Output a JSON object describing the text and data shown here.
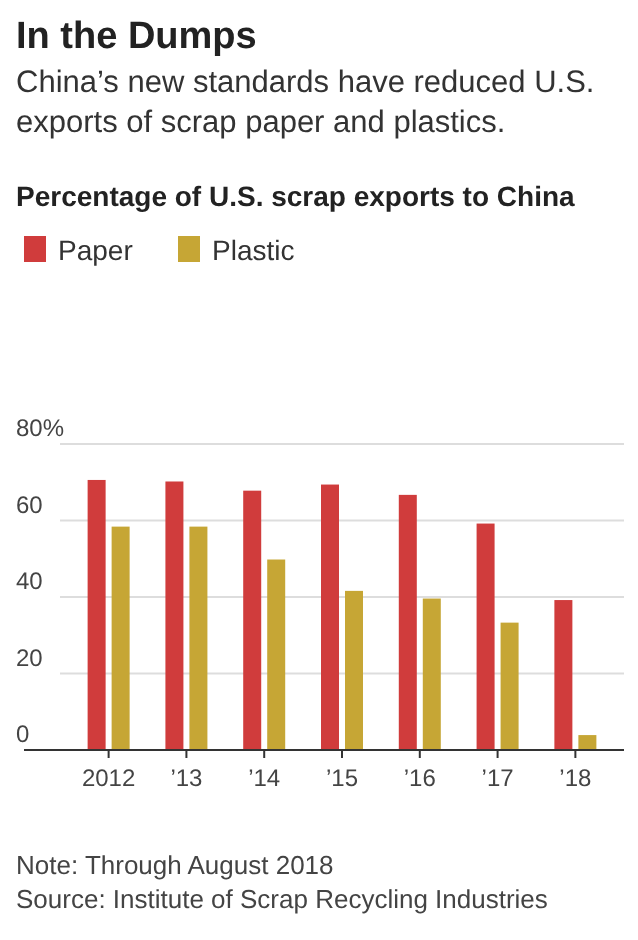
{
  "chart_data": {
    "type": "bar",
    "title": "In the Dumps",
    "subtitle": "China’s new standards have reduced U.S. exports of scrap paper and plastics.",
    "categories": [
      "2012",
      "’13",
      "’14",
      "’15",
      "’16",
      "’17",
      "’18"
    ],
    "series": [
      {
        "name": "Paper",
        "color": "#d03c3c",
        "values": [
          70.6,
          70.2,
          67.8,
          69.4,
          66.7,
          59.2,
          39.2
        ]
      },
      {
        "name": "Plastic",
        "color": "#c6a635",
        "values": [
          58.4,
          58.4,
          49.8,
          41.6,
          39.6,
          33.3,
          3.9
        ]
      }
    ],
    "ylim": [
      0,
      80
    ],
    "yticks": [
      0,
      20,
      40,
      60,
      {
        "value": 80,
        "label": "80%"
      }
    ],
    "grid": "y",
    "legend": "top left",
    "annotations": [
      "Percentage of U.S. scrap exports to China",
      "Note: Through August 2018",
      "Source: Institute of Scrap Recycling Industries"
    ]
  }
}
